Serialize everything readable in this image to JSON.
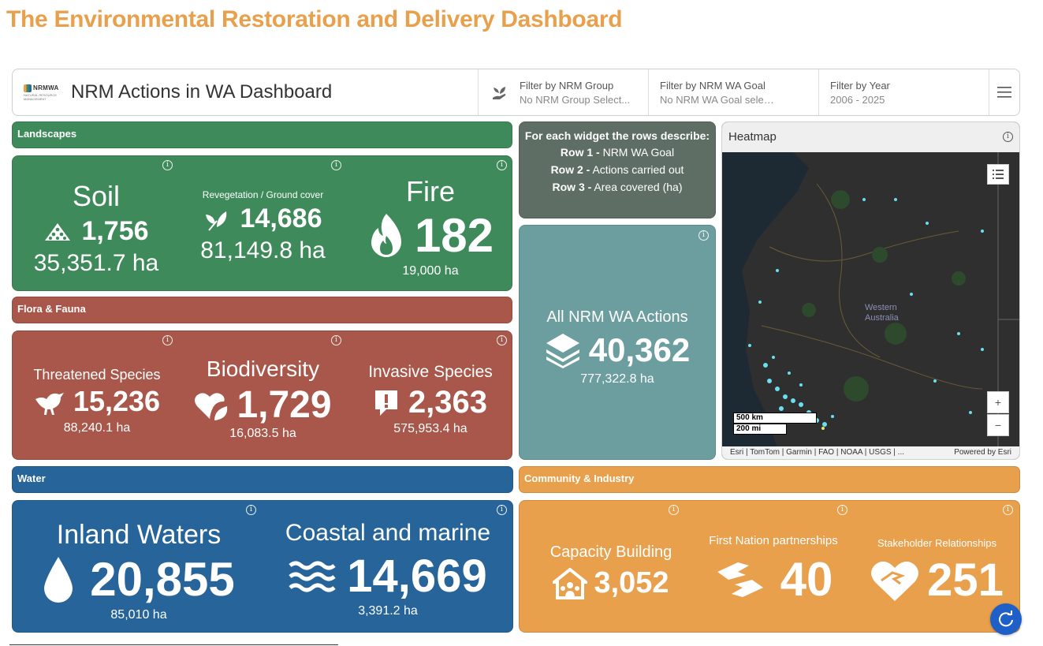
{
  "page_title": "The Environmental Restoration and Delivery Dashboard",
  "header": {
    "logo_text": "NRMWA",
    "logo_subtext": "NATURAL RESOURCE MANAGEMENT",
    "title": "NRM Actions in WA Dashboard",
    "filters": [
      {
        "label": "Filter by NRM Group",
        "value": "No NRM Group Select..."
      },
      {
        "label": "Filter by NRM WA Goal",
        "value": "No NRM WA Goal selected"
      },
      {
        "label": "Filter by Year",
        "value": "2006 - 2025"
      }
    ]
  },
  "sections": {
    "landscapes": "Landscapes",
    "flora_fauna": "Flora & Fauna",
    "water": "Water",
    "community": "Community & Industry"
  },
  "landscapes": {
    "soil": {
      "title": "Soil",
      "actions": "1,756",
      "area": "35,351.7 ha"
    },
    "revegetation": {
      "title": "Revegetation / Ground cover",
      "actions": "14,686",
      "area": "81,149.8 ha"
    },
    "fire": {
      "title": "Fire",
      "actions": "182",
      "area": "19,000 ha"
    }
  },
  "flora_fauna": {
    "threatened": {
      "title": "Threatened Species",
      "actions": "15,236",
      "area": "88,240.1 ha"
    },
    "biodiversity": {
      "title": "Biodiversity",
      "actions": "1,729",
      "area": "16,083.5 ha"
    },
    "invasive": {
      "title": "Invasive Species",
      "actions": "2,363",
      "area": "575,953.4 ha"
    }
  },
  "water": {
    "inland": {
      "title": "Inland Waters",
      "actions": "20,855",
      "area": "85,010 ha"
    },
    "coastal": {
      "title": "Coastal and marine",
      "actions": "14,669",
      "area": "3,391.2 ha"
    }
  },
  "community": {
    "capacity": {
      "title": "Capacity Building",
      "actions": "3,052"
    },
    "first_nation": {
      "title": "First Nation partnerships",
      "actions": "40"
    },
    "stakeholder": {
      "title": "Stakeholder Relationships",
      "actions": "251"
    }
  },
  "legend": {
    "heading": "For each widget the rows describe:",
    "row1_label": "Row 1 -",
    "row1_text": "NRM WA Goal",
    "row2_label": "Row 2 -",
    "row2_text": "Actions carried out",
    "row3_label": "Row 3 -",
    "row3_text": "Area covered (ha)"
  },
  "all_actions": {
    "title": "All NRM WA Actions",
    "actions": "40,362",
    "area": "777,322.8 ha"
  },
  "heatmap": {
    "title": "Heatmap",
    "region_label_1": "Western",
    "region_label_2": "Australia",
    "scale_km": "500 km",
    "scale_mi": "200 mi",
    "attribution": "Esri | TomTom | Garmin | FAO | NOAA | USGS | ...",
    "powered_by": "Powered by Esri",
    "zoom_in": "+",
    "zoom_out": "−"
  },
  "info_glyph": "i",
  "colors": {
    "landscapes": "#3f8a5a",
    "flora_fauna": "#a8574a",
    "water": "#26649a",
    "community": "#e8a04c",
    "title": "#e8a04c"
  }
}
